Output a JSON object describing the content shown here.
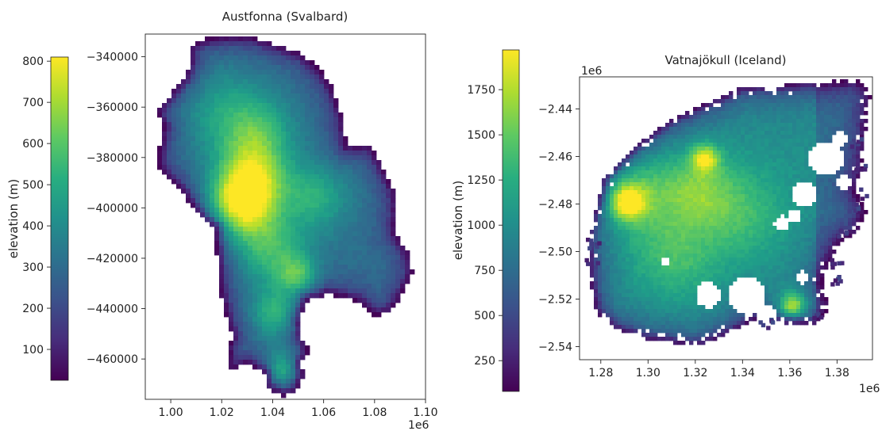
{
  "chart_data": [
    {
      "type": "heatmap",
      "title": "Austfonna (Svalbard)",
      "x_ticks": [
        1.0,
        1.02,
        1.04,
        1.06,
        1.08,
        1.1
      ],
      "x_tick_labels": [
        "1.00",
        "1.02",
        "1.04",
        "1.06",
        "1.08",
        "1.10"
      ],
      "x_offset_label": "1e6",
      "xlim": [
        0.99,
        1.1
      ],
      "y_ticks": [
        -340000,
        -360000,
        -380000,
        -400000,
        -420000,
        -440000,
        -460000
      ],
      "y_tick_labels": [
        "−340000",
        "−360000",
        "−380000",
        "−400000",
        "−420000",
        "−440000",
        "−460000"
      ],
      "ylim": [
        -331000,
        -476000
      ],
      "colorbar": {
        "label": "elevation (m)",
        "range": [
          25,
          810
        ],
        "ticks": [
          100,
          200,
          300,
          400,
          500,
          600,
          700,
          800
        ],
        "tick_labels": [
          "100",
          "200",
          "300",
          "400",
          "500",
          "600",
          "700",
          "800"
        ],
        "colormap": "viridis"
      },
      "surface_features": [
        {
          "kind": "peak",
          "x": 1.032,
          "y": -395000,
          "value": 800
        },
        {
          "kind": "peak",
          "x": 1.029,
          "y": -380000,
          "value": 720
        },
        {
          "kind": "ridge",
          "x": 1.045,
          "y": -415000,
          "value": 600
        },
        {
          "kind": "ridge",
          "x": 1.05,
          "y": -430000,
          "value": 560
        },
        {
          "kind": "dome",
          "x": 1.048,
          "y": -463000,
          "value": 500
        }
      ]
    },
    {
      "type": "heatmap",
      "title": "Vatnajökull (Iceland)",
      "x_ticks": [
        1.28,
        1.3,
        1.32,
        1.34,
        1.36,
        1.38
      ],
      "x_tick_labels": [
        "1.28",
        "1.30",
        "1.32",
        "1.34",
        "1.36",
        "1.38"
      ],
      "x_offset_label": "1e6",
      "xlim": [
        1.271,
        1.395
      ],
      "y_ticks": [
        -2.44,
        -2.46,
        -2.48,
        -2.5,
        -2.52,
        -2.54
      ],
      "y_tick_labels": [
        "−2.44",
        "−2.46",
        "−2.48",
        "−2.50",
        "−2.52",
        "−2.54"
      ],
      "y_offset_label": "1e6",
      "ylim": [
        -2.4265,
        -2.5455
      ],
      "colorbar": {
        "label": "elevation (m)",
        "range": [
          80,
          1970
        ],
        "ticks": [
          250,
          500,
          750,
          1000,
          1250,
          1500,
          1750
        ],
        "tick_labels": [
          "250",
          "500",
          "750",
          "1000",
          "1250",
          "1500",
          "1750"
        ],
        "colormap": "viridis"
      },
      "surface_features": [
        {
          "kind": "peak",
          "x": 1.29,
          "y": -2.475,
          "value": 1950
        },
        {
          "kind": "peak",
          "x": 1.325,
          "y": -2.457,
          "value": 1750
        },
        {
          "kind": "peak",
          "x": 1.359,
          "y": -2.52,
          "value": 1950
        }
      ]
    }
  ]
}
